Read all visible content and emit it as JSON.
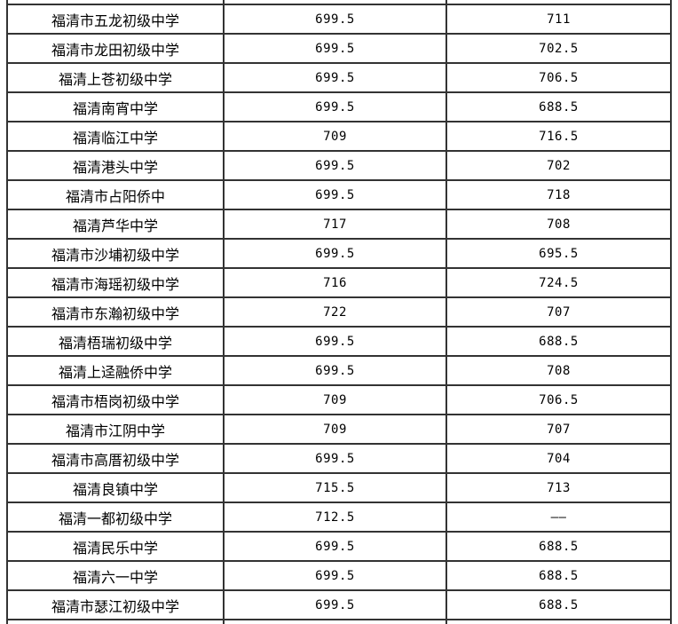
{
  "page": {
    "background_color": "#ffffff",
    "border_color": "#333333",
    "text_color": "#000000"
  },
  "table": {
    "description": "score table, no header row visible; cropped partial rows at top and bottom",
    "columns": [
      "school_name",
      "score_1",
      "score_2"
    ],
    "rows": [
      {
        "school": "福清市五龙初级中学",
        "score1": "699.5",
        "score2": "711"
      },
      {
        "school": "福清市龙田初级中学",
        "score1": "699.5",
        "score2": "702.5"
      },
      {
        "school": "福清上苍初级中学",
        "score1": "699.5",
        "score2": "706.5"
      },
      {
        "school": "福清南宵中学",
        "score1": "699.5",
        "score2": "688.5"
      },
      {
        "school": "福清临江中学",
        "score1": "709",
        "score2": "716.5"
      },
      {
        "school": "福清港头中学",
        "score1": "699.5",
        "score2": "702"
      },
      {
        "school": "福清市占阳侨中",
        "score1": "699.5",
        "score2": "718"
      },
      {
        "school": "福清芦华中学",
        "score1": "717",
        "score2": "708"
      },
      {
        "school": "福清市沙埔初级中学",
        "score1": "699.5",
        "score2": "695.5"
      },
      {
        "school": "福清市海瑶初级中学",
        "score1": "716",
        "score2": "724.5"
      },
      {
        "school": "福清市东瀚初级中学",
        "score1": "722",
        "score2": "707"
      },
      {
        "school": "福清梧瑞初级中学",
        "score1": "699.5",
        "score2": "688.5"
      },
      {
        "school": "福清上迳融侨中学",
        "score1": "699.5",
        "score2": "708"
      },
      {
        "school": "福清市梧岗初级中学",
        "score1": "709",
        "score2": "706.5"
      },
      {
        "school": "福清市江阴中学",
        "score1": "709",
        "score2": "707"
      },
      {
        "school": "福清市高厝初级中学",
        "score1": "699.5",
        "score2": "704"
      },
      {
        "school": "福清良镇中学",
        "score1": "715.5",
        "score2": "713"
      },
      {
        "school": "福清一都初级中学",
        "score1": "712.5",
        "score2": "——"
      },
      {
        "school": "福清民乐中学",
        "score1": "699.5",
        "score2": "688.5"
      },
      {
        "school": "福清六一中学",
        "score1": "699.5",
        "score2": "688.5"
      },
      {
        "school": "福清市瑟江初级中学",
        "score1": "699.5",
        "score2": "688.5"
      }
    ]
  }
}
